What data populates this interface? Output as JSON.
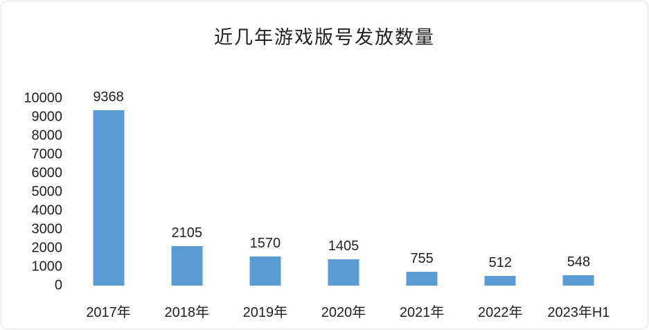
{
  "page": {
    "card_background": "#ffffff",
    "edge_color": "#f2f2f2"
  },
  "chart_data": {
    "type": "bar",
    "title": "近几年游戏版号发放数量",
    "categories": [
      "2017年",
      "2018年",
      "2019年",
      "2020年",
      "2021年",
      "2022年",
      "2023年H1"
    ],
    "values": [
      9368,
      2105,
      1570,
      1405,
      755,
      512,
      548
    ],
    "xlabel": "",
    "ylabel": "",
    "ylim": [
      0,
      10000
    ],
    "ytick_step": 1000,
    "yticks": [
      0,
      1000,
      2000,
      3000,
      4000,
      5000,
      6000,
      7000,
      8000,
      9000,
      10000
    ],
    "grid": false,
    "legend": false,
    "data_labels": true,
    "bar_color": "#5b9bd5",
    "text_color": "#1f1f1f"
  }
}
